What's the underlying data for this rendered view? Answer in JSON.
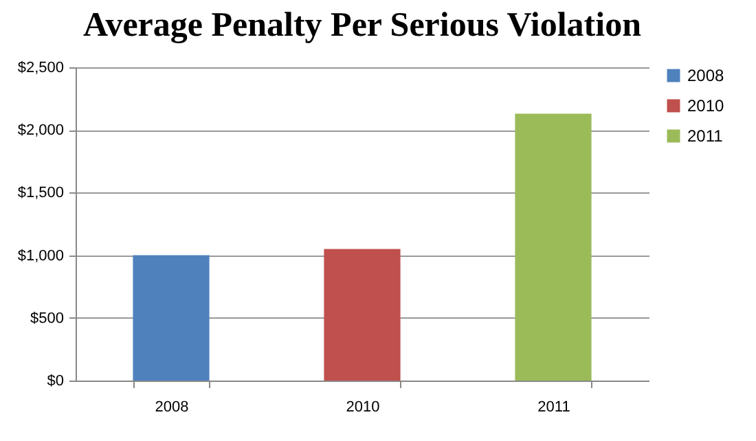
{
  "chart_data": {
    "type": "bar",
    "title": "Average Penalty Per Serious Violation",
    "categories": [
      "2008",
      "2010",
      "2011"
    ],
    "series": [
      {
        "name": "2008",
        "color": "#4f81bd",
        "values": [
          1000,
          null,
          null
        ]
      },
      {
        "name": "2010",
        "color": "#c0504d",
        "values": [
          null,
          1050,
          null
        ]
      },
      {
        "name": "2011",
        "color": "#9bbb59",
        "values": [
          null,
          null,
          2130
        ]
      }
    ],
    "ylim": [
      0,
      2500
    ],
    "yticks": [
      {
        "value": 0,
        "label": "$0"
      },
      {
        "value": 500,
        "label": "$500"
      },
      {
        "value": 1000,
        "label": "$1,000"
      },
      {
        "value": 1500,
        "label": "$1,500"
      },
      {
        "value": 2000,
        "label": "$2,000"
      },
      {
        "value": 2500,
        "label": "$2,500"
      }
    ],
    "grid": "y",
    "legend": "right"
  }
}
